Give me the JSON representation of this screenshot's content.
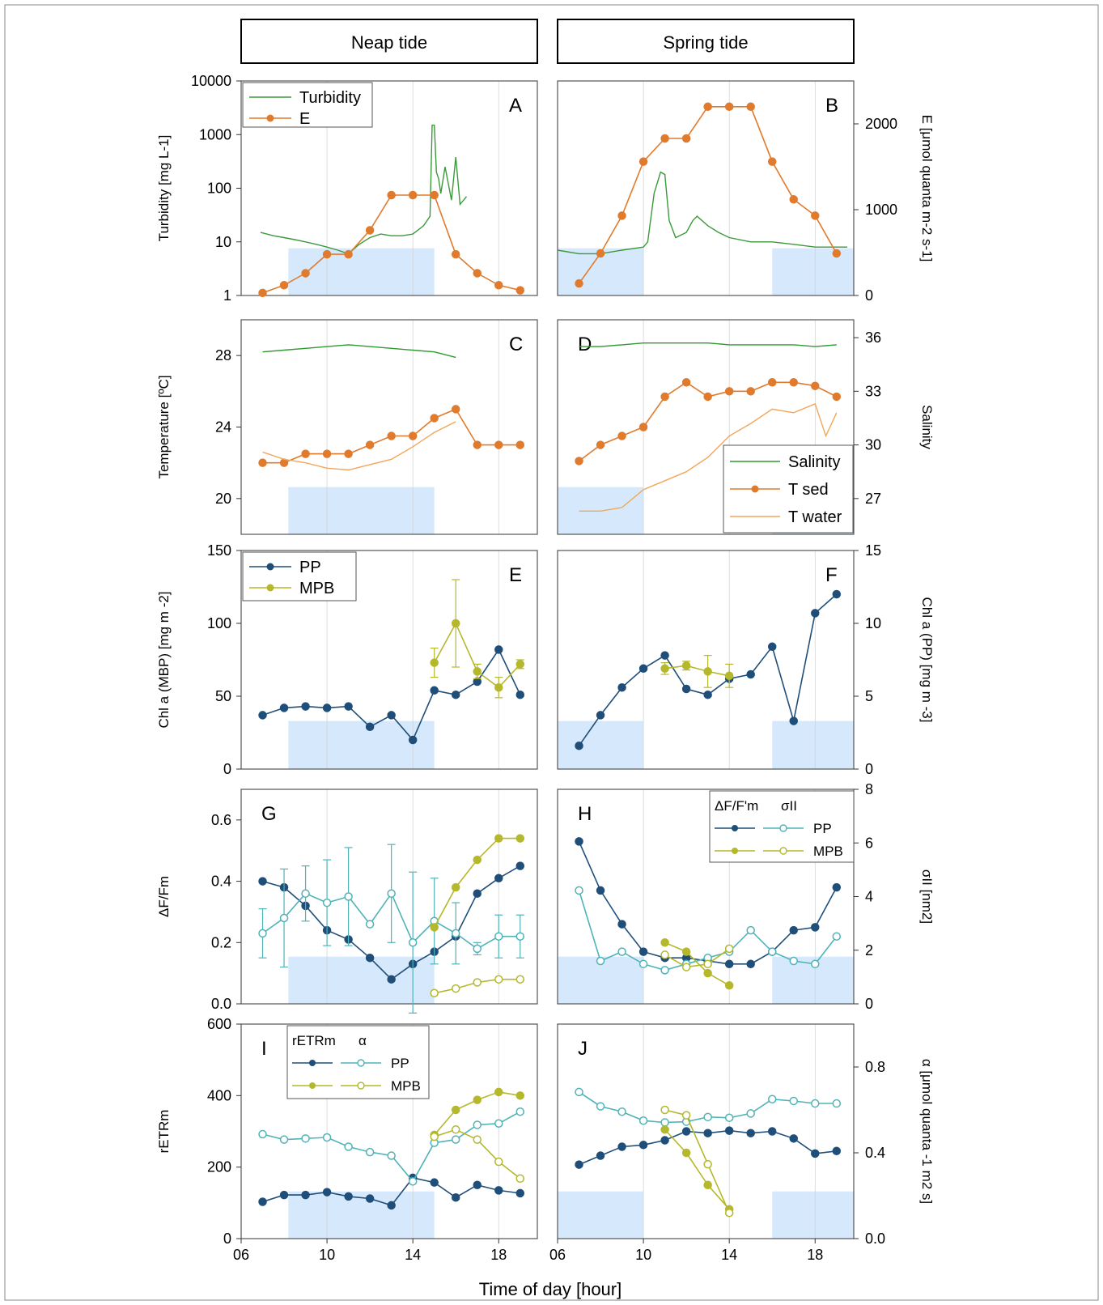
{
  "colors": {
    "pp": "#1f4e79",
    "pp_open": "#4fb3b8",
    "mpb": "#b5b82a",
    "mpb_open": "#b5b82a",
    "turb": "#3a9a3a",
    "E": "#e07b2e",
    "tsed": "#e07b2e",
    "twater": "#f2a65a",
    "sal": "#2f9a2f",
    "night": "#d6e8fb",
    "grid": "#d0d0d0"
  },
  "headers": {
    "neap": "Neap tide",
    "spring": "Spring tide"
  },
  "xlabel": "Time of day [hour]",
  "xticks": [
    "06",
    "10",
    "14",
    "18"
  ],
  "chart_data": [
    {
      "id": "A",
      "type": "line",
      "ylabel": "Turbidity [mg L-1]",
      "yscale": "log",
      "ylim": [
        1,
        10000
      ],
      "yticks": [
        "1",
        "10",
        "100",
        "1000",
        "10000"
      ],
      "legend": [
        "Turbidity",
        "E"
      ],
      "night": [
        [
          8.2,
          15
        ]
      ],
      "series": [
        {
          "name": "Turbidity",
          "x": [
            6.9,
            7.5,
            8,
            8.5,
            9,
            9.5,
            10,
            10.5,
            11,
            11.5,
            12,
            12.5,
            13,
            13.5,
            14,
            14.5,
            14.8,
            14.9,
            15,
            15.1,
            15.2,
            15.3,
            15.5,
            15.8,
            16,
            16.2,
            16.5
          ],
          "y": [
            15,
            13,
            12,
            11,
            10,
            9,
            8,
            7,
            6,
            9,
            12,
            14,
            13,
            13,
            14,
            20,
            30,
            1500,
            1500,
            200,
            150,
            80,
            250,
            60,
            380,
            50,
            70
          ]
        },
        {
          "name": "E",
          "axis": "right",
          "x": [
            7,
            8,
            9,
            10,
            11,
            12,
            13,
            14,
            15,
            16,
            17,
            18,
            19
          ],
          "y": [
            30,
            120,
            260,
            480,
            480,
            760,
            1170,
            1170,
            1170,
            480,
            260,
            120,
            60
          ]
        }
      ]
    },
    {
      "id": "B",
      "type": "line",
      "ylabel": "E [μmol quanta m-2 s-1]",
      "yscale": "log",
      "ylim": [
        1,
        10000
      ],
      "yright": [
        0,
        2500
      ],
      "yrticks": [
        "0",
        "1000",
        "2000"
      ],
      "night": [
        [
          6,
          10
        ],
        [
          16,
          19.8
        ]
      ],
      "series": [
        {
          "name": "Turbidity",
          "x": [
            6,
            7,
            8,
            9,
            10,
            10.2,
            10.5,
            10.8,
            11,
            11.2,
            11.5,
            12,
            12.3,
            12.5,
            13,
            13.5,
            14,
            15,
            16,
            17,
            18,
            19.5
          ],
          "y": [
            7,
            6,
            6,
            7,
            8,
            10,
            80,
            200,
            180,
            25,
            12,
            15,
            25,
            30,
            20,
            15,
            12,
            10,
            10,
            9,
            8,
            8
          ]
        },
        {
          "name": "E",
          "axis": "right",
          "x": [
            7,
            8,
            9,
            10,
            11,
            12,
            13,
            14,
            15,
            16,
            17,
            18,
            19
          ],
          "y": [
            140,
            490,
            930,
            1560,
            1830,
            1830,
            2200,
            2200,
            2200,
            1560,
            1120,
            930,
            490
          ]
        }
      ]
    },
    {
      "id": "C",
      "type": "line",
      "ylabel": "Temperature [ºC]",
      "ylim": [
        18,
        30
      ],
      "yticks": [
        "20",
        "24",
        "28"
      ],
      "night": [
        [
          8.2,
          15
        ]
      ],
      "series": [
        {
          "name": "Salinity",
          "axis": "right",
          "x": [
            7,
            8,
            9,
            10,
            11,
            12,
            13,
            14,
            15,
            16
          ],
          "y": [
            35.2,
            35.3,
            35.4,
            35.5,
            35.6,
            35.5,
            35.4,
            35.3,
            35.2,
            34.9
          ]
        },
        {
          "name": "T sed",
          "x": [
            7,
            8,
            9,
            10,
            11,
            12,
            13,
            14,
            15,
            16,
            17,
            18,
            19
          ],
          "y": [
            22,
            22,
            22.5,
            22.5,
            22.5,
            23,
            23.5,
            23.5,
            24.5,
            25,
            23,
            23,
            23
          ]
        },
        {
          "name": "T water",
          "x": [
            7,
            8,
            9,
            10,
            11,
            12,
            13,
            14,
            15,
            15.5,
            16
          ],
          "y": [
            22.6,
            22.2,
            22,
            21.7,
            21.6,
            21.9,
            22.2,
            22.9,
            23.7,
            24,
            24.3
          ]
        }
      ]
    },
    {
      "id": "D",
      "type": "line",
      "ylabel": "Salinity",
      "ylim": [
        18,
        30
      ],
      "yright": [
        25,
        37
      ],
      "yrticks": [
        "27",
        "30",
        "33",
        "36"
      ],
      "legend": [
        "Salinity",
        "T sed",
        "T water"
      ],
      "night": [
        [
          6,
          10
        ],
        [
          16,
          19.8
        ]
      ],
      "series": [
        {
          "name": "Salinity",
          "axis": "right",
          "x": [
            7,
            8,
            9,
            10,
            11,
            12,
            13,
            14,
            15,
            16,
            17,
            18,
            19
          ],
          "y": [
            35.5,
            35.5,
            35.6,
            35.7,
            35.7,
            35.7,
            35.7,
            35.6,
            35.6,
            35.6,
            35.6,
            35.5,
            35.6
          ]
        },
        {
          "name": "T sed",
          "x": [
            7,
            8,
            9,
            10,
            11,
            12,
            13,
            14,
            15,
            16,
            17,
            18,
            19
          ],
          "y": [
            22.1,
            23,
            23.5,
            24,
            25.7,
            26.5,
            25.7,
            26,
            26,
            26.5,
            26.5,
            26.3,
            25.7
          ]
        },
        {
          "name": "T water",
          "x": [
            7,
            8,
            9,
            10,
            11,
            12,
            13,
            14,
            15,
            16,
            17,
            18,
            18.5,
            19
          ],
          "y": [
            19.3,
            19.3,
            19.5,
            20.5,
            21,
            21.5,
            22.3,
            23.5,
            24.2,
            25,
            24.8,
            25.3,
            23.5,
            24.8
          ]
        }
      ]
    },
    {
      "id": "E",
      "type": "line",
      "ylabel": "Chl a (MBP) [mg m -2]",
      "ylim": [
        0,
        150
      ],
      "yticks": [
        "0",
        "50",
        "100",
        "150"
      ],
      "legend": [
        "PP",
        "MPB"
      ],
      "night": [
        [
          8.2,
          15
        ]
      ],
      "series": [
        {
          "name": "PP",
          "x": [
            7,
            8,
            9,
            10,
            11,
            12,
            13,
            14,
            15,
            16,
            17,
            18,
            19
          ],
          "y": [
            37,
            42,
            43,
            42,
            43,
            29,
            37,
            20,
            54,
            51,
            60,
            82,
            51
          ]
        },
        {
          "name": "MPB",
          "x": [
            15,
            16,
            17,
            18,
            19
          ],
          "y": [
            73,
            100,
            67,
            56,
            72
          ],
          "err": [
            10,
            30,
            5,
            7,
            3
          ]
        }
      ]
    },
    {
      "id": "F",
      "type": "line",
      "ylabel": "Chl a (PP) [mg m -3]",
      "ylim": [
        0,
        15
      ],
      "yright": [
        0,
        15
      ],
      "yrticks": [
        "0",
        "5",
        "10",
        "15"
      ],
      "night": [
        [
          6,
          10
        ],
        [
          16,
          19.8
        ]
      ],
      "series": [
        {
          "name": "PP",
          "x": [
            7,
            8,
            9,
            10,
            11,
            12,
            13,
            14,
            15,
            16,
            17,
            18,
            19
          ],
          "y": [
            1.6,
            3.7,
            5.6,
            6.9,
            7.8,
            5.5,
            5.1,
            6.2,
            6.5,
            8.4,
            3.3,
            10.7,
            12
          ]
        },
        {
          "name": "MPB",
          "x": [
            11,
            12,
            13,
            14
          ],
          "y": [
            6.9,
            7.1,
            6.7,
            6.4
          ],
          "err": [
            0.4,
            0.3,
            1.1,
            0.8
          ]
        }
      ]
    },
    {
      "id": "G",
      "type": "line",
      "ylabel": "ΔF/Fm",
      "ylim": [
        0,
        0.7
      ],
      "yticks": [
        "0.0",
        "0.2",
        "0.4",
        "0.6"
      ],
      "night": [
        [
          8.2,
          15
        ]
      ],
      "series": [
        {
          "name": "ΔF/F'm PP",
          "x": [
            7,
            8,
            9,
            10,
            11,
            12,
            13,
            14,
            15,
            16,
            17,
            18,
            19
          ],
          "y": [
            0.4,
            0.38,
            0.32,
            0.24,
            0.21,
            0.15,
            0.08,
            0.13,
            0.17,
            0.22,
            0.36,
            0.41,
            0.45
          ]
        },
        {
          "name": "σII PP",
          "x": [
            7,
            8,
            9,
            10,
            11,
            12,
            13,
            14,
            15,
            16,
            17,
            18,
            19
          ],
          "y": [
            0.23,
            0.28,
            0.36,
            0.33,
            0.35,
            0.26,
            0.36,
            0.2,
            0.27,
            0.23,
            0.18,
            0.22,
            0.22
          ],
          "err": [
            0.08,
            0.16,
            0.09,
            0.14,
            0.16,
            0,
            0.16,
            0.23,
            0.14,
            0.1,
            0.02,
            0.07,
            0.07
          ]
        },
        {
          "name": "ΔF/F'm MPB",
          "x": [
            15,
            16,
            17,
            18,
            19
          ],
          "y": [
            0.25,
            0.38,
            0.47,
            0.54,
            0.54
          ]
        },
        {
          "name": "σII MPB",
          "x": [
            15,
            16,
            17,
            18,
            19
          ],
          "y": [
            0.035,
            0.05,
            0.07,
            0.08,
            0.08
          ]
        }
      ]
    },
    {
      "id": "H",
      "type": "line",
      "ylabel": "σII [nm2]",
      "ylim": [
        0,
        0.7
      ],
      "yright": [
        0,
        8
      ],
      "yrticks": [
        "0",
        "2",
        "4",
        "6",
        "8"
      ],
      "legend": [
        "ΔF/F'm",
        "σII",
        "PP",
        "MPB"
      ],
      "night": [
        [
          6,
          10
        ],
        [
          16,
          19.8
        ]
      ],
      "series": [
        {
          "name": "ΔF/F'm PP",
          "x": [
            7,
            8,
            9,
            10,
            11,
            12,
            13,
            14,
            15,
            16,
            17,
            18,
            19
          ],
          "y": [
            0.53,
            0.37,
            0.26,
            0.17,
            0.15,
            0.15,
            0.14,
            0.13,
            0.13,
            0.17,
            0.24,
            0.25,
            0.38
          ]
        },
        {
          "name": "σII PP",
          "x": [
            7,
            8,
            9,
            10,
            11,
            12,
            13,
            14,
            15,
            16,
            17,
            18,
            19
          ],
          "y": [
            0.37,
            0.14,
            0.17,
            0.13,
            0.11,
            0.13,
            0.15,
            0.17,
            0.24,
            0.17,
            0.14,
            0.13,
            0.22
          ]
        },
        {
          "name": "ΔF/F'm MPB",
          "x": [
            11,
            12,
            13,
            14
          ],
          "y": [
            0.2,
            0.17,
            0.1,
            0.06
          ]
        },
        {
          "name": "σII MPB",
          "x": [
            11,
            12,
            13,
            14
          ],
          "y": [
            0.16,
            0.12,
            0.13,
            0.18
          ]
        }
      ]
    },
    {
      "id": "I",
      "type": "line",
      "ylabel": "rETRm",
      "ylim": [
        0,
        600
      ],
      "yticks": [
        "0",
        "200",
        "400",
        "600"
      ],
      "legend": [
        "rETRm",
        "α",
        "PP",
        "MPB"
      ],
      "night": [
        [
          8.2,
          15
        ]
      ],
      "series": [
        {
          "name": "rETRm PP",
          "x": [
            7,
            8,
            9,
            10,
            11,
            12,
            13,
            14,
            15,
            16,
            17,
            18,
            19
          ],
          "y": [
            103,
            122,
            122,
            130,
            118,
            112,
            93,
            170,
            157,
            115,
            150,
            135,
            127
          ]
        },
        {
          "name": "α PP",
          "x": [
            7,
            8,
            9,
            10,
            11,
            12,
            13,
            14,
            15,
            16,
            17,
            18,
            19
          ],
          "y": [
            292,
            277,
            280,
            283,
            257,
            242,
            232,
            160,
            268,
            277,
            318,
            322,
            355
          ]
        },
        {
          "name": "rETRm MPB",
          "x": [
            15,
            16,
            17,
            18,
            19
          ],
          "y": [
            290,
            360,
            388,
            410,
            400
          ]
        },
        {
          "name": "α MPB",
          "x": [
            15,
            16,
            17,
            18,
            19
          ],
          "y": [
            285,
            305,
            277,
            215,
            168
          ]
        }
      ]
    },
    {
      "id": "J",
      "type": "line",
      "ylabel": "α [μmol quanta -1 m2 s]",
      "ylim": [
        0,
        600
      ],
      "yright": [
        0,
        1
      ],
      "yrticks": [
        "0.0",
        "0.4",
        "0.8"
      ],
      "night": [
        [
          6,
          10
        ],
        [
          16,
          19.8
        ]
      ],
      "series": [
        {
          "name": "rETRm PP",
          "x": [
            7,
            8,
            9,
            10,
            11,
            12,
            13,
            14,
            15,
            16,
            17,
            18,
            19
          ],
          "y": [
            207,
            232,
            257,
            262,
            275,
            300,
            295,
            302,
            295,
            300,
            280,
            238,
            245
          ]
        },
        {
          "name": "α PP",
          "x": [
            7,
            8,
            9,
            10,
            11,
            12,
            13,
            14,
            15,
            16,
            17,
            18,
            19
          ],
          "y": [
            410,
            370,
            355,
            330,
            325,
            327,
            340,
            338,
            350,
            390,
            385,
            378,
            378
          ]
        },
        {
          "name": "rETRm MPB",
          "x": [
            11,
            12,
            13,
            14
          ],
          "y": [
            305,
            240,
            150,
            82
          ]
        },
        {
          "name": "α MPB",
          "x": [
            11,
            12,
            13,
            14
          ],
          "y": [
            360,
            345,
            208,
            72
          ]
        }
      ]
    }
  ]
}
